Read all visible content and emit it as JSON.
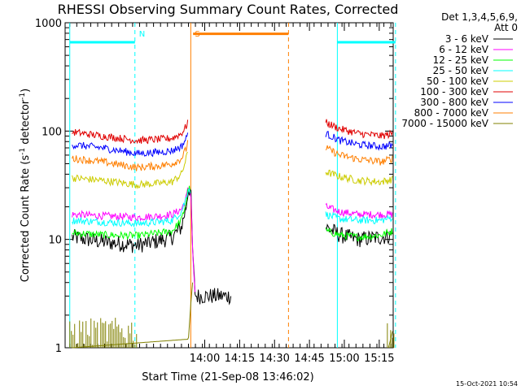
{
  "chart_data": {
    "type": "line",
    "title": "RHESSI Observing Summary Count Rates, Corrected",
    "xlabel": "Start Time (21-Sep-08 13:46:02)",
    "ylabel": "Corrected Count Rate (s",
    "ylabel_sup1": "-1",
    "ylabel_mid": " detector",
    "ylabel_sup2": "-1",
    "ylabel_end": ")",
    "y_scale": "log",
    "ylim": [
      1,
      1000
    ],
    "x_ticks": [
      "14:00",
      "14:15",
      "14:30",
      "14:45",
      "15:00",
      "15:15"
    ],
    "y_ticks": [
      "1",
      "10",
      "100",
      "1000"
    ],
    "legend_header": [
      "Det 1,3,4,5,6,9,",
      "Att 0"
    ],
    "legend": [
      {
        "name": "3 - 6 keV",
        "color": "#000000"
      },
      {
        "name": "6 - 12 keV",
        "color": "#ff00ff"
      },
      {
        "name": "12 - 25 keV",
        "color": "#00ff00"
      },
      {
        "name": "25 - 50 keV",
        "color": "#00ffff"
      },
      {
        "name": "50 - 100 keV",
        "color": "#cccc00"
      },
      {
        "name": "100 - 300 keV",
        "color": "#e00000"
      },
      {
        "name": "300 - 800 keV",
        "color": "#0000ff"
      },
      {
        "name": "800 - 7000 keV",
        "color": "#ff7f00"
      },
      {
        "name": "7000 - 15000 keV",
        "color": "#808000"
      }
    ],
    "time_axis_minutes": [
      -46,
      95
    ],
    "gap_minutes": [
      25.5,
      63.5
    ],
    "series": [
      {
        "name": "3 - 6 keV",
        "color": "#000000",
        "points": [
          [
            -43,
            10.5
          ],
          [
            -30,
            9.5
          ],
          [
            -15,
            8.8
          ],
          [
            -5,
            9.8
          ],
          [
            0,
            10.5
          ],
          [
            4,
            13
          ],
          [
            6,
            20
          ],
          [
            7,
            30
          ],
          [
            8,
            28
          ],
          [
            9,
            6
          ],
          [
            10,
            3
          ],
          [
            25.5,
            3
          ]
        ],
        "right": [
          [
            66,
            13
          ],
          [
            72,
            11
          ],
          [
            80,
            10
          ],
          [
            90,
            10.5
          ],
          [
            95,
            11
          ]
        ]
      },
      {
        "name": "6 - 12 keV",
        "color": "#ff00ff",
        "points": [
          [
            -43,
            17
          ],
          [
            -30,
            16.5
          ],
          [
            -15,
            16
          ],
          [
            -5,
            16.5
          ],
          [
            0,
            17
          ],
          [
            4,
            19
          ],
          [
            6,
            24
          ],
          [
            7,
            30
          ],
          [
            8,
            28
          ],
          [
            9,
            6
          ],
          [
            10,
            3
          ]
        ],
        "right": [
          [
            66,
            20
          ],
          [
            72,
            18
          ],
          [
            80,
            17
          ],
          [
            90,
            17
          ],
          [
            95,
            17
          ]
        ]
      },
      {
        "name": "12 - 25 keV",
        "color": "#00ff00",
        "points": [
          [
            -43,
            11.5
          ],
          [
            -30,
            11
          ],
          [
            -15,
            10.8
          ],
          [
            -5,
            11.5
          ],
          [
            0,
            12
          ],
          [
            4,
            15
          ],
          [
            6,
            22
          ],
          [
            7,
            30
          ],
          [
            8,
            28
          ]
        ],
        "right": [
          [
            66,
            12
          ],
          [
            72,
            11
          ],
          [
            80,
            10.5
          ],
          [
            90,
            11
          ],
          [
            95,
            12
          ]
        ]
      },
      {
        "name": "25 - 50 keV",
        "color": "#00ffff",
        "points": [
          [
            -43,
            15
          ],
          [
            -30,
            14.5
          ],
          [
            -15,
            14
          ],
          [
            -5,
            14.5
          ],
          [
            0,
            15
          ],
          [
            4,
            18
          ],
          [
            6,
            24
          ],
          [
            7,
            30
          ],
          [
            8,
            28
          ]
        ],
        "right": [
          [
            66,
            17
          ],
          [
            72,
            15.5
          ],
          [
            80,
            15
          ],
          [
            90,
            15
          ],
          [
            95,
            16
          ]
        ]
      },
      {
        "name": "50 - 100 keV",
        "color": "#cccc00",
        "points": [
          [
            -43,
            37
          ],
          [
            -30,
            35
          ],
          [
            -15,
            32
          ],
          [
            -5,
            33
          ],
          [
            0,
            34
          ],
          [
            4,
            40
          ],
          [
            6,
            55
          ],
          [
            7,
            70
          ]
        ],
        "right": [
          [
            66,
            42
          ],
          [
            72,
            38
          ],
          [
            80,
            35
          ],
          [
            90,
            34
          ],
          [
            95,
            36
          ]
        ]
      },
      {
        "name": "100 - 300 keV",
        "color": "#e00000",
        "points": [
          [
            -43,
            98
          ],
          [
            -30,
            90
          ],
          [
            -15,
            82
          ],
          [
            -5,
            84
          ],
          [
            0,
            86
          ],
          [
            4,
            95
          ],
          [
            6,
            110
          ],
          [
            7,
            130
          ]
        ],
        "right": [
          [
            66,
            120
          ],
          [
            72,
            105
          ],
          [
            80,
            95
          ],
          [
            90,
            90
          ],
          [
            95,
            95
          ]
        ]
      },
      {
        "name": "300 - 800 keV",
        "color": "#0000ff",
        "points": [
          [
            -43,
            75
          ],
          [
            -30,
            70
          ],
          [
            -15,
            62
          ],
          [
            -5,
            64
          ],
          [
            0,
            66
          ],
          [
            4,
            72
          ],
          [
            6,
            85
          ],
          [
            7,
            100
          ]
        ],
        "right": [
          [
            66,
            95
          ],
          [
            72,
            82
          ],
          [
            80,
            75
          ],
          [
            90,
            72
          ],
          [
            95,
            74
          ]
        ]
      },
      {
        "name": "800 - 7000 keV",
        "color": "#ff7f00",
        "points": [
          [
            -43,
            56
          ],
          [
            -30,
            52
          ],
          [
            -15,
            46
          ],
          [
            -5,
            48
          ],
          [
            0,
            50
          ],
          [
            4,
            56
          ],
          [
            6,
            68
          ],
          [
            7,
            85
          ]
        ],
        "right": [
          [
            66,
            70
          ],
          [
            72,
            60
          ],
          [
            80,
            55
          ],
          [
            90,
            52
          ],
          [
            95,
            56
          ]
        ]
      },
      {
        "name": "7000 - 15000 keV",
        "color": "#808000",
        "points": [
          [
            -43,
            1
          ],
          [
            7,
            1.2
          ],
          [
            8,
            2.5
          ],
          [
            9,
            4.5
          ]
        ],
        "right": [
          [
            93,
            1
          ],
          [
            95,
            1.5
          ]
        ]
      }
    ],
    "markers": [
      {
        "label": "",
        "color": "#00ffff",
        "kind": "solid",
        "x": -44
      },
      {
        "label": "N",
        "color": "#00ffff",
        "kind": "dashed",
        "x": -16
      },
      {
        "label": "S",
        "color": "#ff7f00",
        "kind": "solid",
        "x": 8
      },
      {
        "label": "",
        "color": "#ff7f00",
        "kind": "dashed",
        "x": 50
      },
      {
        "label": "",
        "color": "#00ffff",
        "kind": "solid",
        "x": 71
      },
      {
        "label": "",
        "color": "#00ffff",
        "kind": "dashed",
        "x": 96
      }
    ],
    "bars": [
      {
        "color": "#00ffff",
        "x0": -44,
        "x1": -16,
        "y": 660
      },
      {
        "color": "#ff7f00",
        "x0": 9,
        "x1": 50,
        "y": 790
      },
      {
        "color": "#00ffff",
        "x0": 71,
        "x1": 96,
        "y": 660
      }
    ]
  },
  "footer": {
    "timestamp": "15-Oct-2021 10:54"
  }
}
